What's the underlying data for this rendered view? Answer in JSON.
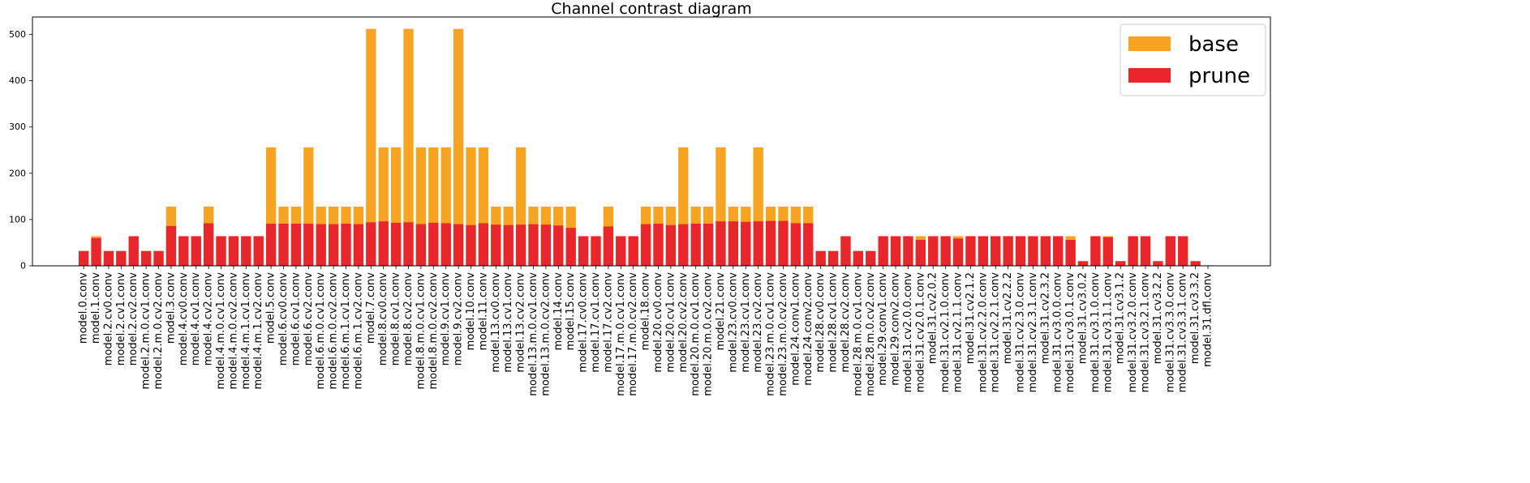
{
  "chart_data": {
    "type": "bar",
    "title": "Channel contrast diagram",
    "xlabel": "",
    "ylabel": "",
    "categories": [
      "model.0.conv",
      "model.1.conv",
      "model.2.cv0.conv",
      "model.2.cv1.conv",
      "model.2.cv2.conv",
      "model.2.m.0.cv1.conv",
      "model.2.m.0.cv2.conv",
      "model.3.conv",
      "model.4.cv0.conv",
      "model.4.cv1.conv",
      "model.4.cv2.conv",
      "model.4.m.0.cv1.conv",
      "model.4.m.0.cv2.conv",
      "model.4.m.1.cv1.conv",
      "model.4.m.1.cv2.conv",
      "model.5.conv",
      "model.6.cv0.conv",
      "model.6.cv1.conv",
      "model.6.cv2.conv",
      "model.6.m.0.cv1.conv",
      "model.6.m.0.cv2.conv",
      "model.6.m.1.cv1.conv",
      "model.6.m.1.cv2.conv",
      "model.7.conv",
      "model.8.cv0.conv",
      "model.8.cv1.conv",
      "model.8.cv2.conv",
      "model.8.m.0.cv1.conv",
      "model.8.m.0.cv2.conv",
      "model.9.cv1.conv",
      "model.9.cv2.conv",
      "model.10.conv",
      "model.11.conv",
      "model.13.cv0.conv",
      "model.13.cv1.conv",
      "model.13.cv2.conv",
      "model.13.m.0.cv1.conv",
      "model.13.m.0.cv2.conv",
      "model.14.conv",
      "model.15.conv",
      "model.17.cv0.conv",
      "model.17.cv1.conv",
      "model.17.cv2.conv",
      "model.17.m.0.cv1.conv",
      "model.17.m.0.cv2.conv",
      "model.18.conv",
      "model.20.cv0.conv",
      "model.20.cv1.conv",
      "model.20.cv2.conv",
      "model.20.m.0.cv1.conv",
      "model.20.m.0.cv2.conv",
      "model.21.conv",
      "model.23.cv0.conv",
      "model.23.cv1.conv",
      "model.23.cv2.conv",
      "model.23.m.0.cv1.conv",
      "model.23.m.0.cv2.conv",
      "model.24.conv1.conv",
      "model.24.conv2.conv",
      "model.28.cv0.conv",
      "model.28.cv1.conv",
      "model.28.cv2.conv",
      "model.28.m.0.cv1.conv",
      "model.28.m.0.cv2.conv",
      "model.29.conv1.conv",
      "model.29.conv2.conv",
      "model.31.cv2.0.0.conv",
      "model.31.cv2.0.1.conv",
      "model.31.cv2.0.2",
      "model.31.cv2.1.0.conv",
      "model.31.cv2.1.1.conv",
      "model.31.cv2.1.2",
      "model.31.cv2.2.0.conv",
      "model.31.cv2.2.1.conv",
      "model.31.cv2.2.2",
      "model.31.cv2.3.0.conv",
      "model.31.cv2.3.1.conv",
      "model.31.cv2.3.2",
      "model.31.cv3.0.0.conv",
      "model.31.cv3.0.1.conv",
      "model.31.cv3.0.2",
      "model.31.cv3.1.0.conv",
      "model.31.cv3.1.1.conv",
      "model.31.cv3.1.2",
      "model.31.cv3.2.0.conv",
      "model.31.cv3.2.1.conv",
      "model.31.cv3.2.2",
      "model.31.cv3.3.0.conv",
      "model.31.cv3.3.1.conv",
      "model.31.cv3.3.2",
      "model.31.dfl.conv"
    ],
    "series": [
      {
        "name": "base",
        "color": "#f7a423",
        "values": [
          32,
          64,
          32,
          32,
          64,
          32,
          32,
          128,
          64,
          64,
          128,
          64,
          64,
          64,
          64,
          256,
          128,
          128,
          256,
          128,
          128,
          128,
          128,
          512,
          256,
          256,
          512,
          256,
          256,
          256,
          512,
          256,
          256,
          128,
          128,
          256,
          128,
          128,
          128,
          128,
          64,
          64,
          128,
          64,
          64,
          128,
          128,
          128,
          256,
          128,
          128,
          256,
          128,
          128,
          256,
          128,
          128,
          128,
          128,
          32,
          32,
          64,
          32,
          32,
          64,
          64,
          64,
          64,
          64,
          64,
          64,
          64,
          64,
          64,
          64,
          64,
          64,
          64,
          64,
          64,
          10,
          64,
          64,
          10,
          64,
          64,
          10,
          64,
          64,
          10,
          1
        ]
      },
      {
        "name": "prune",
        "color": "#e9262b",
        "values": [
          32,
          60,
          32,
          32,
          64,
          32,
          32,
          86,
          64,
          64,
          92,
          64,
          64,
          64,
          64,
          91,
          91,
          91,
          91,
          90,
          90,
          91,
          90,
          94,
          96,
          93,
          94,
          90,
          93,
          92,
          90,
          88,
          92,
          89,
          88,
          89,
          90,
          89,
          87,
          82,
          64,
          64,
          85,
          64,
          64,
          90,
          91,
          88,
          90,
          91,
          91,
          96,
          96,
          95,
          96,
          97,
          97,
          92,
          92,
          32,
          32,
          64,
          32,
          32,
          64,
          64,
          64,
          56,
          64,
          64,
          59,
          64,
          64,
          64,
          64,
          64,
          64,
          64,
          64,
          56,
          10,
          64,
          62,
          10,
          64,
          64,
          10,
          64,
          64,
          10,
          1
        ]
      }
    ],
    "xlim": [
      -4.1,
      95.0
    ],
    "ylim": [
      0,
      537.6
    ],
    "yticks": [
      0,
      100,
      200,
      300,
      400,
      500
    ],
    "grid": false,
    "legend": "upper-right"
  }
}
